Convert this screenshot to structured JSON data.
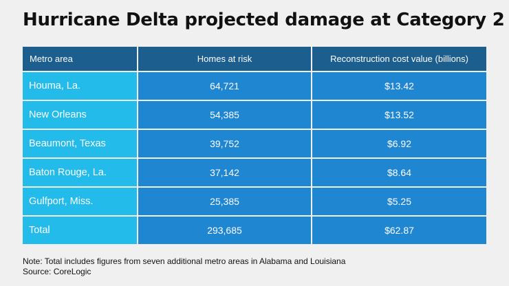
{
  "title": "Hurricane Delta projected damage at Category 2",
  "chart_data": {
    "type": "table",
    "columns": [
      "Metro area",
      "Homes at risk",
      "Reconstruction cost value (billions)"
    ],
    "rows": [
      [
        "Houma, La.",
        "64,721",
        "$13.42"
      ],
      [
        "New Orleans",
        "54,385",
        "$13.52"
      ],
      [
        "Beaumont, Texas",
        "39,752",
        "$6.92"
      ],
      [
        "Baton Rouge, La.",
        "37,142",
        "$8.64"
      ],
      [
        "Gulfport, Miss.",
        "25,385",
        "$5.25"
      ],
      [
        "Total",
        "293,685",
        "$62.87"
      ]
    ]
  },
  "notes": {
    "note": "Note: Total includes figures from seven additional metro areas in Alabama and Louisiana",
    "source": "Source: CoreLogic"
  },
  "colors": {
    "header_bg": "#1c5e8e",
    "first_column_bg": "#22bbea",
    "data_cell_bg": "#1f86d2",
    "page_bg": "#f0f0f0"
  }
}
